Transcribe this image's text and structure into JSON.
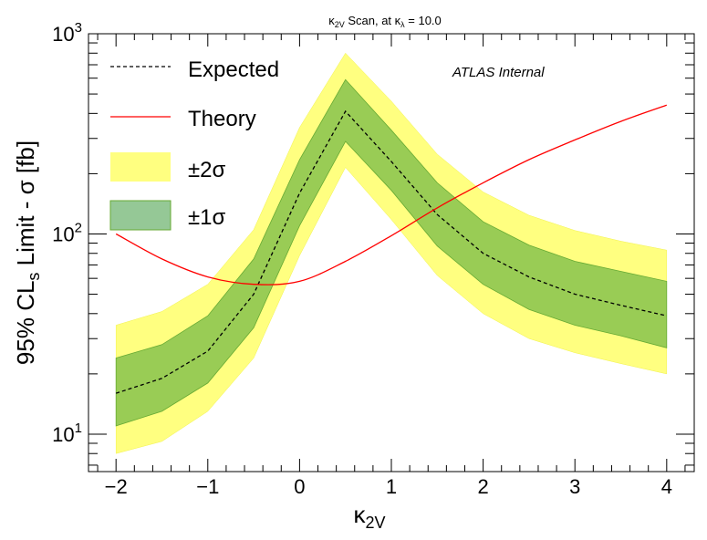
{
  "chart_data": {
    "type": "line",
    "title": "κ₂ᵥ Scan, at κλ = 10.0",
    "title_parts": {
      "k": "κ",
      "k_sub": "2V",
      "mid": " Scan, at κ",
      "lam_sub": "λ",
      "rest": " = 10.0"
    },
    "xlabel": "κ2V",
    "xlabel_parts": {
      "main": "κ",
      "sub": "2V"
    },
    "ylabel": "95% CLs Limit - σ [fb]",
    "ylabel_parts": {
      "pre": "95% CL",
      "sub": "s",
      "post": " Limit - σ [fb]"
    },
    "annotation": "ATLAS Internal",
    "xlim": [
      -2.3,
      4.3
    ],
    "ylim": [
      6.5,
      1000
    ],
    "yscale": "log",
    "x_ticks": [
      -2,
      -1,
      0,
      1,
      2,
      3,
      4
    ],
    "x_tick_labels": [
      "−2",
      "−1",
      "0",
      "1",
      "2",
      "3",
      "4"
    ],
    "y_tick_labels": [
      {
        "value": 10,
        "base": "10",
        "exp": "1"
      },
      {
        "value": 100,
        "base": "10",
        "exp": "2"
      },
      {
        "value": 1000,
        "base": "10",
        "exp": "3"
      }
    ],
    "legend": [
      {
        "key": "expected",
        "label": "Expected"
      },
      {
        "key": "theory",
        "label": "Theory"
      },
      {
        "key": "two_sigma",
        "label": "±2σ"
      },
      {
        "key": "one_sigma",
        "label": "±1σ"
      }
    ],
    "legend_position": "top-left",
    "x": [
      -2,
      -1.5,
      -1,
      -0.5,
      0,
      0.5,
      1,
      1.5,
      2,
      2.5,
      3,
      3.5,
      4
    ],
    "expected": [
      16,
      19,
      26,
      50,
      160,
      410,
      230,
      125,
      80,
      61,
      50,
      44,
      39
    ],
    "band_1sigma": {
      "upper": [
        24,
        28,
        39,
        75,
        235,
        590,
        330,
        180,
        115,
        88,
        73,
        65,
        58
      ],
      "lower": [
        11,
        13,
        18,
        34,
        110,
        290,
        165,
        87,
        56,
        42,
        35,
        31,
        27
      ]
    },
    "band_2sigma": {
      "upper": [
        35,
        41,
        56,
        105,
        340,
        800,
        460,
        250,
        162,
        124,
        104,
        92,
        83
      ],
      "lower": [
        8,
        9.2,
        13,
        24,
        78,
        215,
        118,
        62,
        40,
        30,
        25.5,
        22.5,
        20
      ]
    },
    "theory": {
      "x": [
        -2,
        -1.5,
        -1,
        -0.5,
        0,
        0.5,
        1,
        1.5,
        2,
        2.5,
        3,
        3.5,
        4
      ],
      "y": [
        100,
        75,
        61,
        56,
        58,
        73,
        98,
        135,
        180,
        235,
        295,
        365,
        440
      ]
    },
    "colors": {
      "expected": "#000000",
      "theory": "#ff0000",
      "one_sigma": "#99cc55",
      "one_sigma_edge": "#66aa33",
      "two_sigma": "#ffff80",
      "two_sigma_edge": "#f2f24c",
      "legend_one_sigma": "#95c896"
    }
  }
}
